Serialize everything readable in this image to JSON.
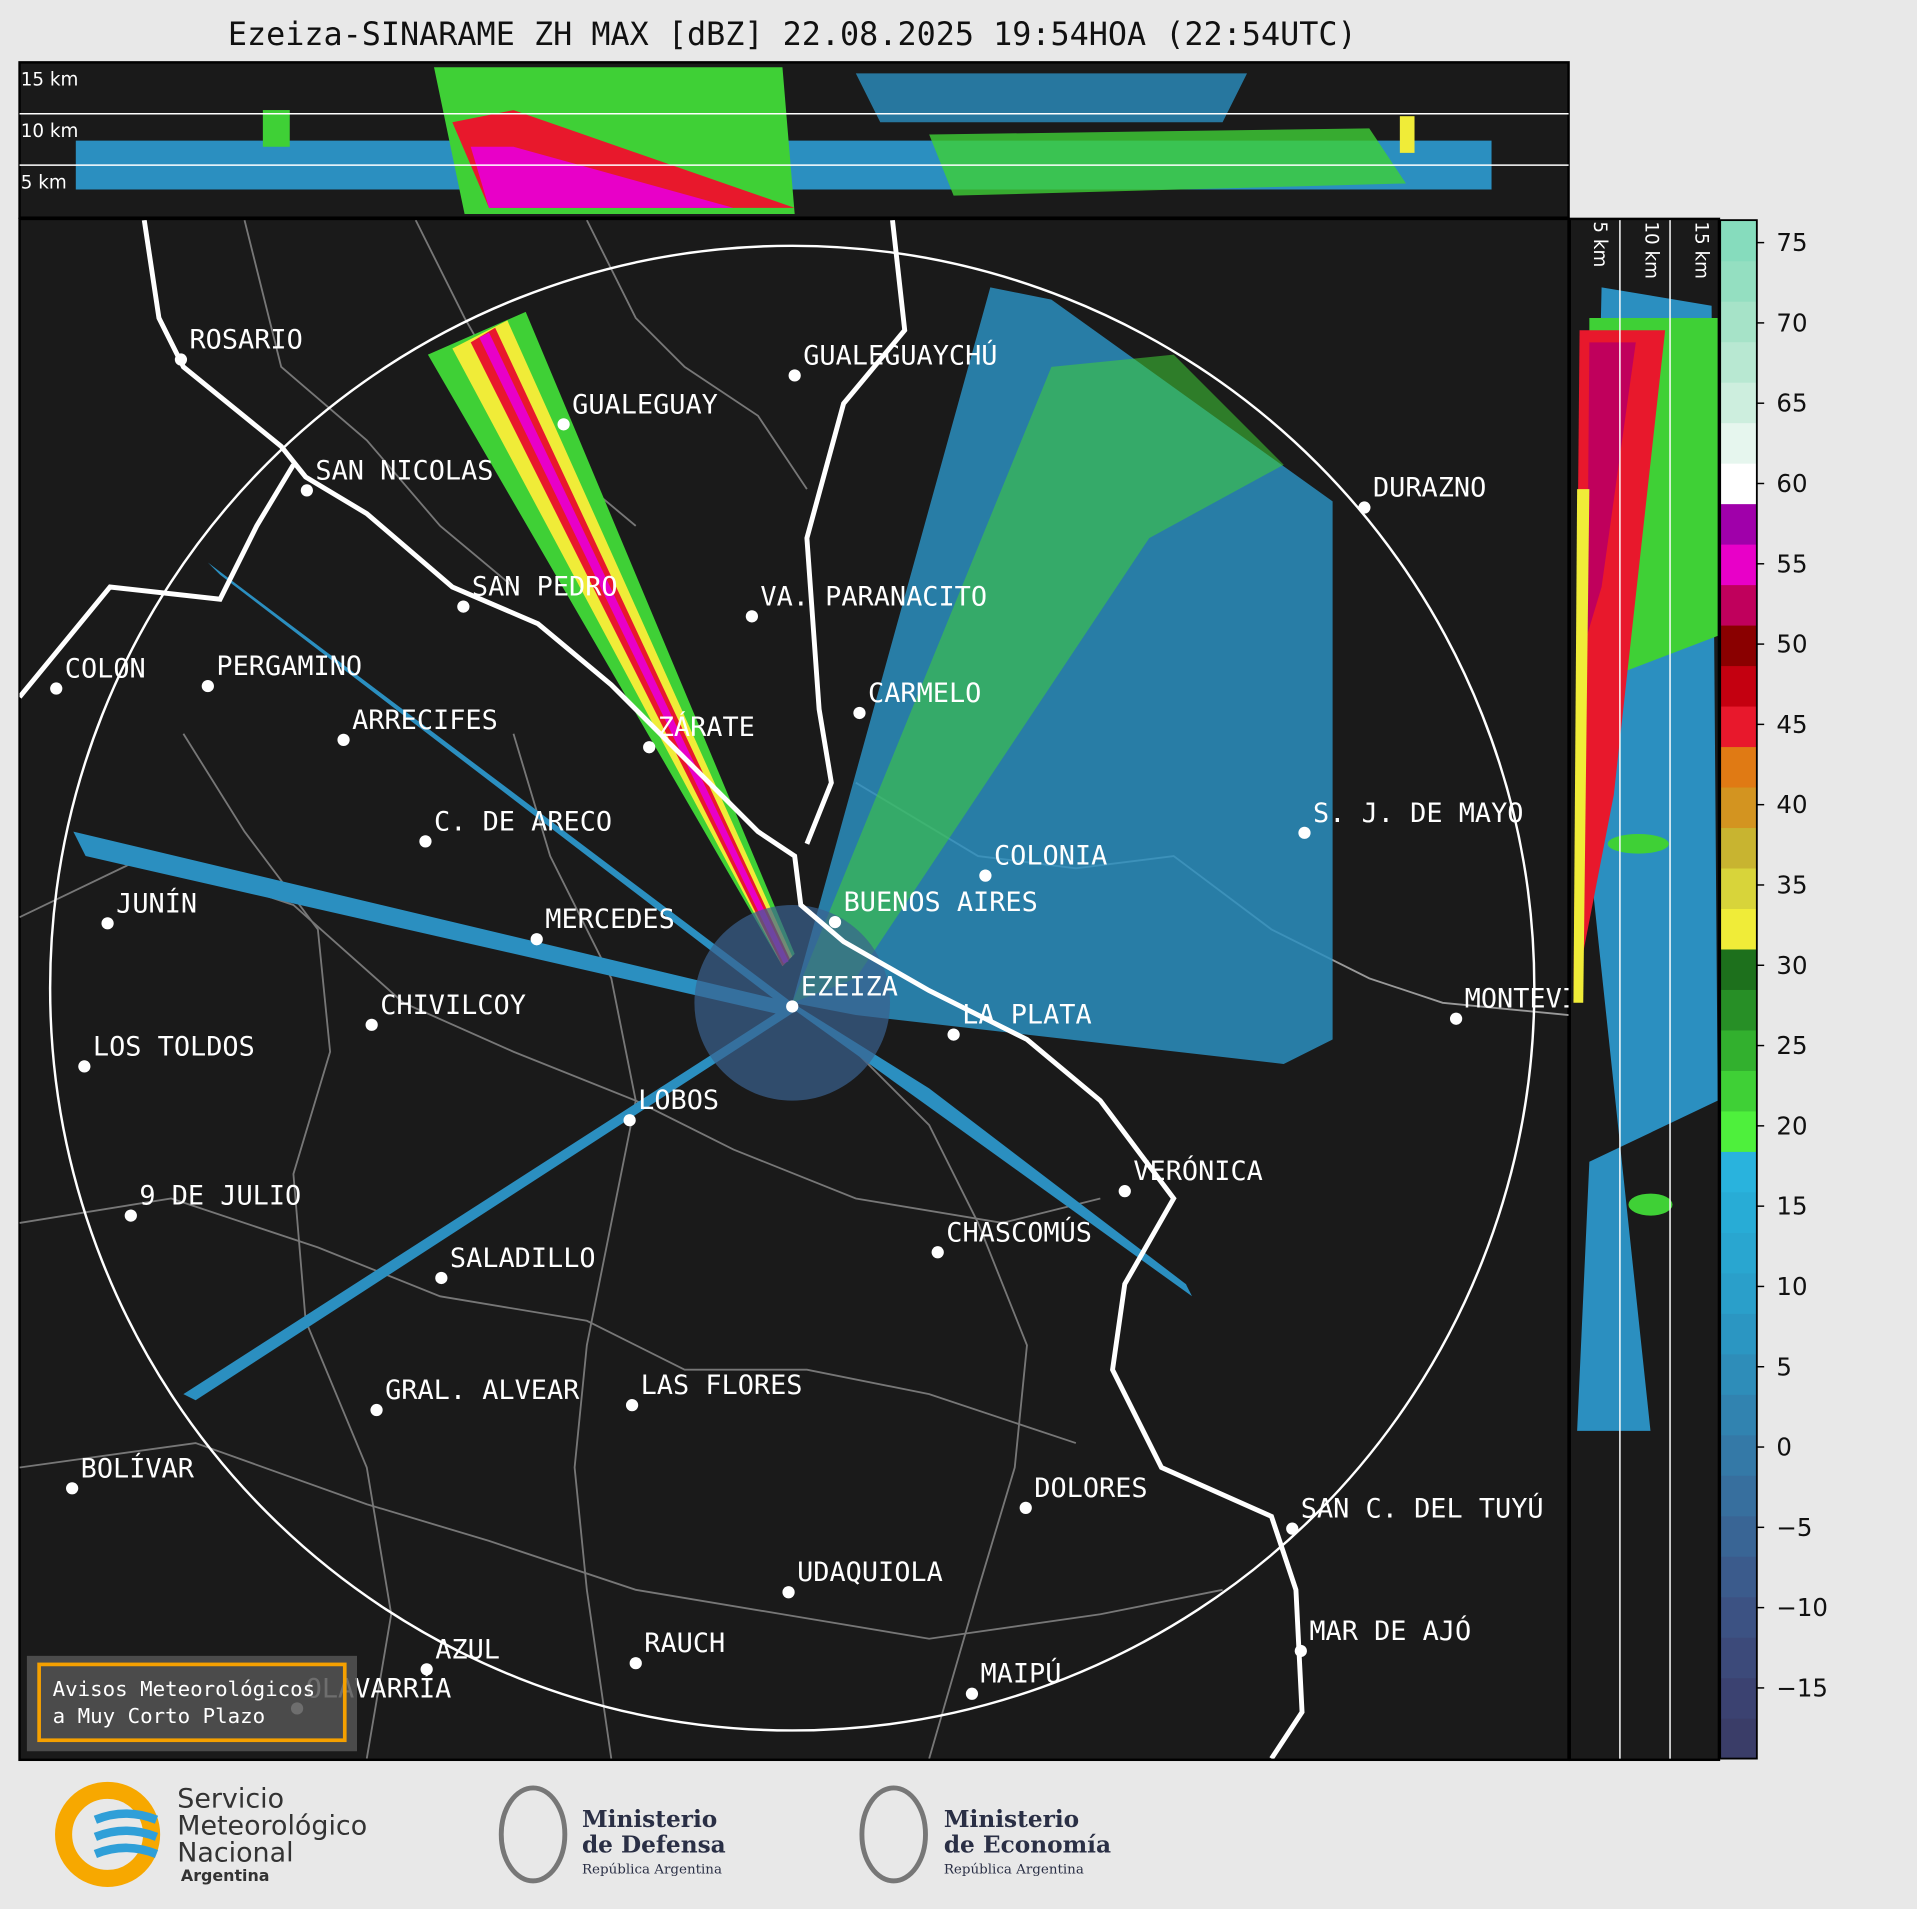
{
  "title": "Ezeiza-SINARAME ZH MAX [dBZ] 22.08.2025 19:54HOA (22:54UTC)",
  "top_panel": {
    "height_labels": [
      "15 km",
      "10 km",
      "5 km"
    ]
  },
  "side_panel": {
    "height_labels": [
      "5 km",
      "10 km",
      "15 km"
    ]
  },
  "cities": [
    "ROSARIO",
    "GUALEGUAYCHÚ",
    "GUALEGUAY",
    "SAN NICOLAS",
    "DURAZNO",
    "SAN PEDRO",
    "VA. PARANACITO",
    "COLON",
    "PERGAMINO",
    "CARMELO",
    "ARRECIFES",
    "ZÁRATE",
    "S. J. DE MAYO",
    "C. DE ARECO",
    "COLONIA",
    "BUENOS AIRES",
    "JUNÍN",
    "MERCEDES",
    "EZEIZA",
    "MONTEVIDEO",
    "CHIVILCOY",
    "LA PLATA",
    "LOS TOLDOS",
    "LOBOS",
    "VERÓNICA",
    "9 DE JULIO",
    "CHASCOMÚS",
    "SALADILLO",
    "LAS FLORES",
    "GRAL. ALVEAR",
    "BOLÍVAR",
    "DOLORES",
    "SAN C. DEL TUYÚ",
    "UDAQUIOLA",
    "MAR DE AJÓ",
    "AZUL",
    "RAUCH",
    "OLAVARRÍA",
    "MAIPÚ"
  ],
  "alert_box": [
    "Avisos Meteorológicos",
    "a Muy Corto Plazo"
  ],
  "colorbar": {
    "ylim": [
      -19.4,
      76.4
    ],
    "yticks": [
      75,
      70,
      65,
      60,
      55,
      50,
      45,
      40,
      35,
      30,
      25,
      20,
      15,
      10,
      5,
      0,
      {
        "value": -5,
        "label": "−5"
      },
      {
        "value": -10,
        "label": "−10"
      },
      {
        "value": -15,
        "label": "−15"
      }
    ],
    "colors": [
      "#3a3d68",
      "#3b4271",
      "#3c4a7a",
      "#3c5283",
      "#3b5b8c",
      "#396595",
      "#376f9e",
      "#3479a7",
      "#3183b0",
      "#2e8db9",
      "#2b96c2",
      "#2a9fca",
      "#29a6d0",
      "#28acd6",
      "#29b3dd",
      "#4ef03c",
      "#3fd036",
      "#32b02e",
      "#278f26",
      "#1d701c",
      "#f0ec38",
      "#d8d43a",
      "#c8b430",
      "#d39420",
      "#e07a14",
      "#e8182c",
      "#c40010",
      "#8a0000",
      "#c0005c",
      "#e800c8",
      "#a000aa",
      "#ffffff",
      "#e6f6ee",
      "#cdeede",
      "#b8e8d2",
      "#a6e3c8",
      "#94dfc1",
      "#86dcbd"
    ]
  },
  "logos": {
    "smn": [
      "Servicio",
      "Meteorológico",
      "Nacional",
      "Argentina"
    ],
    "defensa": [
      "Ministerio",
      "de Defensa",
      "República Argentina"
    ],
    "economia": [
      "Ministerio",
      "de Economía",
      "República Argentina"
    ]
  }
}
